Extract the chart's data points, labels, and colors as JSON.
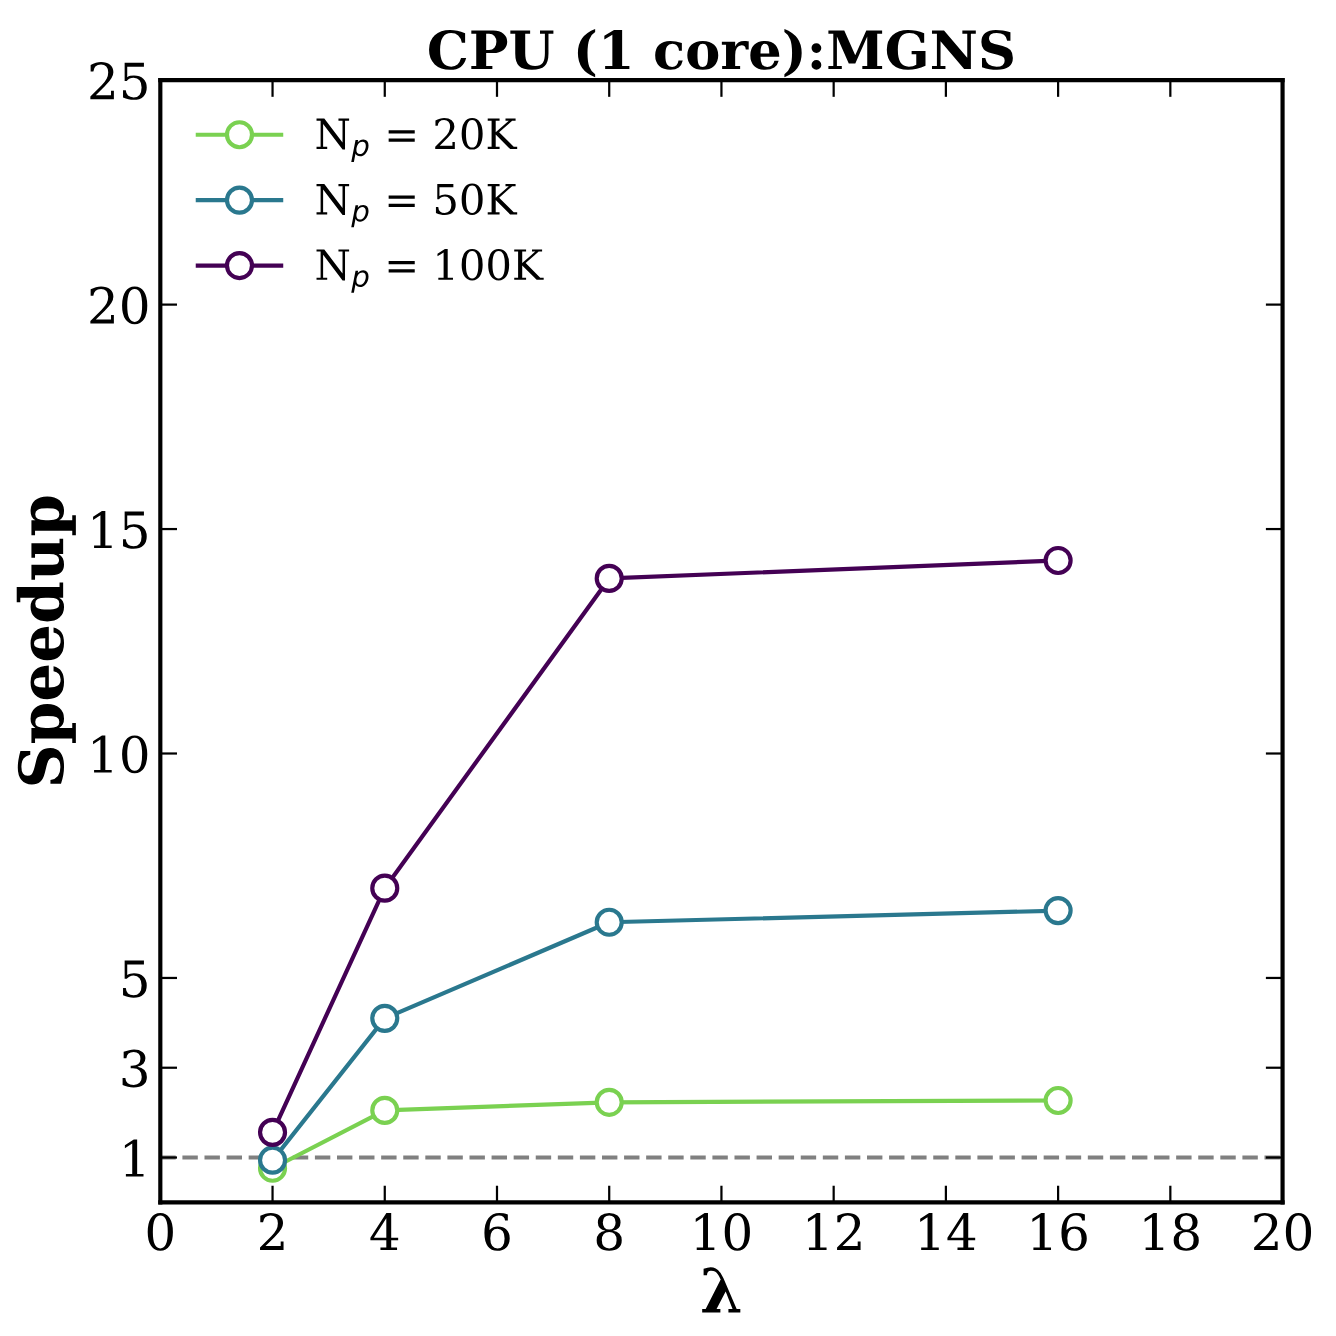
{
  "chart_data": {
    "type": "line",
    "title": "CPU (1 core):MGNS",
    "xlabel": "λ",
    "ylabel": "Speedup",
    "x": [
      2,
      4,
      8,
      16
    ],
    "series": [
      {
        "name": "N$_{p}$ = 20K",
        "color": "#7ad151",
        "values": [
          0.76,
          2.05,
          2.23,
          2.27
        ]
      },
      {
        "name": "N$_{p}$ = 50K",
        "color": "#2a788e",
        "values": [
          0.94,
          4.1,
          6.24,
          6.5
        ]
      },
      {
        "name": "N$_{p}$ = 100K",
        "color": "#440154",
        "values": [
          1.56,
          7.0,
          13.9,
          14.3
        ]
      }
    ],
    "xlim": [
      0,
      20
    ],
    "xticks": [
      0,
      2,
      4,
      6,
      8,
      10,
      12,
      14,
      16,
      18,
      20
    ],
    "ylim": [
      0,
      25
    ],
    "yticks": [
      1,
      3,
      5,
      10,
      15,
      20,
      25
    ],
    "ref_lines": [
      {
        "axis": "y",
        "value": 1,
        "color": "#808080",
        "line_style": "dashed"
      }
    ],
    "marker": "circle",
    "line_style": "solid",
    "legend": "top left",
    "grid": false
  }
}
